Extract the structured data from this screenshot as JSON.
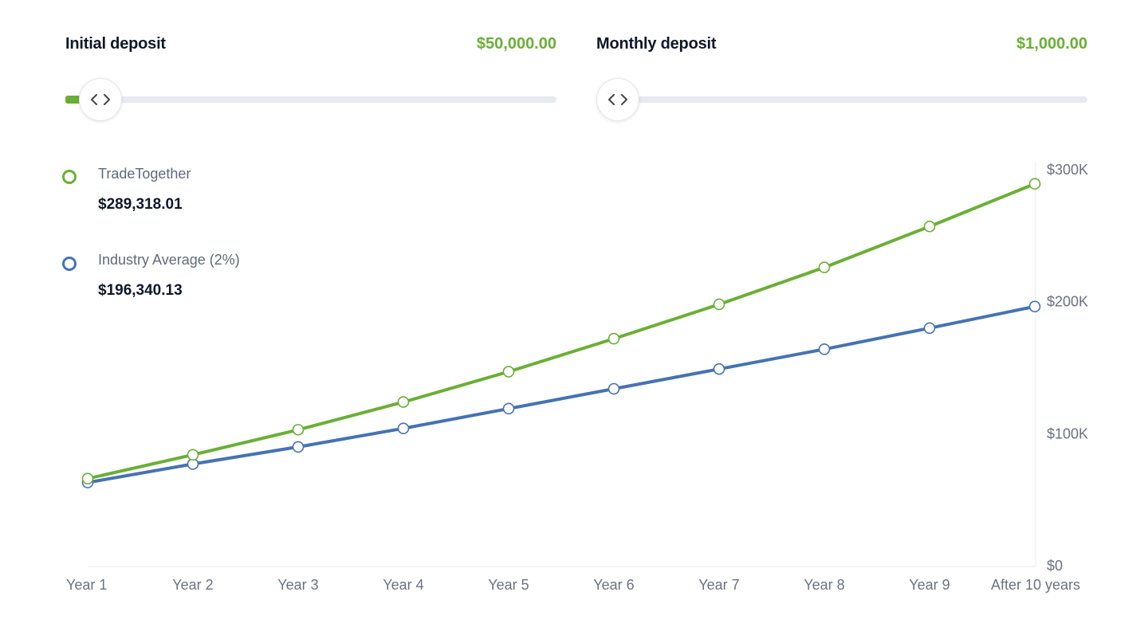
{
  "initial_deposit": {
    "label": "Initial deposit",
    "value": "$50,000.00",
    "slider_level": 0.03
  },
  "monthly_deposit": {
    "label": "Monthly deposit",
    "value": "$1,000.00",
    "slider_level": 0.0
  },
  "colors": {
    "green": "#6aaf35",
    "blue": "#4672b4",
    "track": "#e6e9ef"
  },
  "icons": {
    "slider_handle": "chevron-left-right-icon"
  },
  "legend": [
    {
      "name": "TradeTogether",
      "value": "$289,318.01",
      "color": "#6aaf35"
    },
    {
      "name": "Industry Average (2%)",
      "value": "$196,340.13",
      "color": "#4672b4"
    }
  ],
  "chart_data": {
    "type": "line",
    "categories": [
      "Year 1",
      "Year 2",
      "Year 3",
      "Year 4",
      "Year 5",
      "Year 6",
      "Year 7",
      "Year 8",
      "Year 9",
      "After 10 years"
    ],
    "series": [
      {
        "name": "TradeTogether",
        "color": "#6aaf35",
        "values": [
          66000,
          84000,
          103000,
          124000,
          147000,
          172000,
          198000,
          226000,
          257000,
          289318.01
        ]
      },
      {
        "name": "Industry Average (2%)",
        "color": "#4672b4",
        "values": [
          63000,
          77000,
          90000,
          104000,
          119000,
          134000,
          149000,
          164000,
          180000,
          196340.13
        ]
      }
    ],
    "ylim": [
      0,
      300000
    ],
    "y_tick_values": [
      0,
      100000,
      200000,
      300000
    ],
    "y_tick_labels": [
      "$0",
      "$100K",
      "$200K",
      "$300K"
    ],
    "y_axis_side": "right",
    "grid": false
  }
}
